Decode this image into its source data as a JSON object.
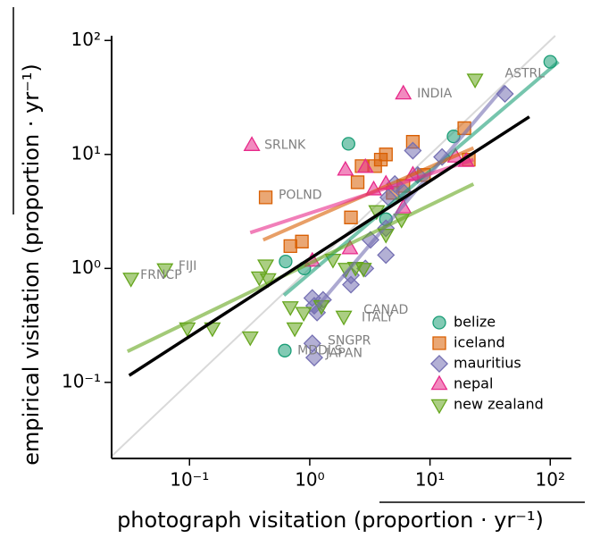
{
  "chart_data": {
    "type": "scatter",
    "xlabel": "photograph visitation (proportion · yr⁻¹)",
    "ylabel": "empirical visitation (proportion · yr⁻¹)",
    "log_x": true,
    "log_y": true,
    "xlim": [
      0.0225,
      150
    ],
    "ylim": [
      0.0215,
      110
    ],
    "xticks": [
      {
        "value": 0.1,
        "label": "10⁻¹"
      },
      {
        "value": 1,
        "label": "10⁰"
      },
      {
        "value": 10,
        "label": "10¹"
      },
      {
        "value": 100,
        "label": "10²"
      }
    ],
    "yticks": [
      {
        "value": 0.1,
        "label": "10⁻¹"
      },
      {
        "value": 1,
        "label": "10⁰"
      },
      {
        "value": 10,
        "label": "10¹"
      },
      {
        "value": 100,
        "label": "10²"
      }
    ],
    "identity_line": true,
    "legend": "lower right",
    "series": [
      {
        "name": "belize",
        "color": "#1b9e77",
        "marker": "circle",
        "x": [
          100,
          2.1,
          0.63,
          0.62,
          15.7,
          0.9,
          4.3
        ],
        "values": [
          65,
          12.4,
          1.15,
          0.19,
          14.4,
          1.0,
          2.7
        ],
        "fit": {
          "x": [
            0.61,
            117
          ],
          "y": [
            0.58,
            65
          ]
        }
      },
      {
        "name": "iceland",
        "color": "#d95f02",
        "marker": "square",
        "x": [
          0.43,
          0.69,
          0.86,
          2.2,
          2.5,
          2.7,
          3.5,
          3.9,
          4.3,
          7.2,
          4.9,
          6.0,
          8.9,
          19.3,
          21
        ],
        "values": [
          4.2,
          1.57,
          1.72,
          2.8,
          5.7,
          7.9,
          7.9,
          9.0,
          10,
          12.9,
          4.6,
          5.3,
          6.6,
          17,
          9.0
        ],
        "fit": {
          "x": [
            0.41,
            23
          ],
          "y": [
            1.78,
            11.4
          ]
        }
      },
      {
        "name": "mauritius",
        "color": "#7570b3",
        "marker": "diamond",
        "x": [
          1.05,
          1.09,
          1.15,
          1.29,
          1.05,
          1.09,
          2.2,
          2.2,
          2.9,
          3.2,
          4.3,
          4.3,
          4.5,
          5.1,
          6.1,
          7.2,
          7.9,
          12.6,
          42
        ],
        "values": [
          0.55,
          0.47,
          0.41,
          0.53,
          0.22,
          0.165,
          0.72,
          0.87,
          1.0,
          1.78,
          1.31,
          2.25,
          4.2,
          5.5,
          4.6,
          10.8,
          6.6,
          9.5,
          34
        ],
        "fit": {
          "x": [
            1.05,
            42
          ],
          "y": [
            0.41,
            40
          ]
        }
      },
      {
        "name": "nepal",
        "color": "#e7298a",
        "marker": "triangle-up",
        "x": [
          0.33,
          6.0,
          1.05,
          1.98,
          2.16,
          2.9,
          3.4,
          4.3,
          6.0,
          7.2,
          16.3,
          20
        ],
        "values": [
          12,
          34,
          1.16,
          7.3,
          1.49,
          7.7,
          4.9,
          5.5,
          3.4,
          6.6,
          9.5,
          8.7
        ],
        "fit": {
          "x": [
            0.32,
            23
          ],
          "y": [
            2.06,
            9.0
          ]
        }
      },
      {
        "name": "new zealand",
        "color": "#66a61e",
        "marker": "triangle-down",
        "x": [
          0.0326,
          0.0625,
          0.096,
          0.155,
          0.32,
          0.38,
          0.43,
          0.45,
          0.75,
          0.69,
          0.89,
          1.25,
          1.56,
          1.92,
          2.0,
          2.4,
          2.8,
          3.6,
          4.3,
          5.8,
          23.7
        ],
        "values": [
          0.82,
          0.99,
          0.3,
          0.3,
          0.25,
          0.84,
          1.07,
          0.81,
          0.3,
          0.46,
          0.41,
          0.47,
          1.2,
          0.38,
          1.0,
          1.02,
          1.0,
          3.2,
          1.99,
          2.7,
          45.7
        ],
        "fit": {
          "x": [
            0.0305,
            23
          ],
          "y": [
            0.187,
            5.5
          ]
        }
      }
    ],
    "trend": {
      "color": "#000000",
      "x": [
        0.0315,
        67
      ],
      "y": [
        0.115,
        21.4
      ]
    },
    "annotations": [
      {
        "text": "ASTRL",
        "x": 42,
        "y": 51
      },
      {
        "text": "INDIA",
        "x": 7.8,
        "y": 34
      },
      {
        "text": "SRLNK",
        "x": 0.42,
        "y": 12
      },
      {
        "text": "POLND",
        "x": 0.55,
        "y": 4.4
      },
      {
        "text": "FIJI",
        "x": 0.081,
        "y": 1.04
      },
      {
        "text": "FRNCP",
        "x": 0.039,
        "y": 0.87
      },
      {
        "text": "CANAD",
        "x": 2.8,
        "y": 0.43
      },
      {
        "text": "ITALY",
        "x": 2.7,
        "y": 0.37
      },
      {
        "text": "SNGPR",
        "x": 1.41,
        "y": 0.23
      },
      {
        "text": "JAPAN",
        "x": 1.36,
        "y": 0.18
      },
      {
        "text": "MDDLS",
        "x": 0.79,
        "y": 0.19
      }
    ]
  }
}
